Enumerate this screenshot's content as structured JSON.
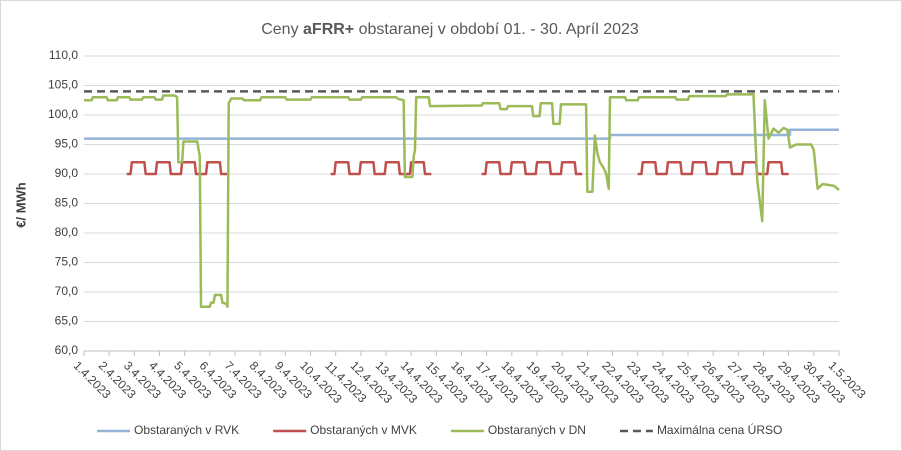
{
  "chart_data": {
    "type": "line",
    "title": [
      "Ceny ",
      "aFRR+",
      " obstaranej v období 01. - 30. Apríl 2023"
    ],
    "y_label": "€/ MWh",
    "xlim": [
      0,
      30
    ],
    "xticks": [
      {
        "value": 0,
        "label": "1.4.2023"
      },
      {
        "value": 1,
        "label": "2.4.2023"
      },
      {
        "value": 2,
        "label": "3.4.2023"
      },
      {
        "value": 3,
        "label": "4.4.2023"
      },
      {
        "value": 4,
        "label": "5.4.2023"
      },
      {
        "value": 5,
        "label": "6.4.2023"
      },
      {
        "value": 6,
        "label": "7.4.2023"
      },
      {
        "value": 7,
        "label": "8.4.2023"
      },
      {
        "value": 8,
        "label": "9.4.2023"
      },
      {
        "value": 9,
        "label": "10.4.2023"
      },
      {
        "value": 10,
        "label": "11.4.2023"
      },
      {
        "value": 11,
        "label": "12.4.2023"
      },
      {
        "value": 12,
        "label": "13.4.2023"
      },
      {
        "value": 13,
        "label": "14.4.2023"
      },
      {
        "value": 14,
        "label": "15.4.2023"
      },
      {
        "value": 15,
        "label": "16.4.2023"
      },
      {
        "value": 16,
        "label": "17.4.2023"
      },
      {
        "value": 17,
        "label": "18.4.2023"
      },
      {
        "value": 18,
        "label": "19.4.2023"
      },
      {
        "value": 19,
        "label": "20.4.2023"
      },
      {
        "value": 20,
        "label": "21.4.2023"
      },
      {
        "value": 21,
        "label": "22.4.2023"
      },
      {
        "value": 22,
        "label": "23.4.2023"
      },
      {
        "value": 23,
        "label": "24.4.2023"
      },
      {
        "value": 24,
        "label": "25.4.2023"
      },
      {
        "value": 25,
        "label": "26.4.2023"
      },
      {
        "value": 26,
        "label": "27.4.2023"
      },
      {
        "value": 27,
        "label": "28.4.2023"
      },
      {
        "value": 28,
        "label": "29.4.2023"
      },
      {
        "value": 29,
        "label": "30.4.2023"
      },
      {
        "value": 30,
        "label": "1.5.2023"
      }
    ],
    "ylim": [
      60,
      110
    ],
    "yticks": [
      {
        "value": 60,
        "label": "60,0"
      },
      {
        "value": 65,
        "label": "65,0"
      },
      {
        "value": 70,
        "label": "70,0"
      },
      {
        "value": 75,
        "label": "75,0"
      },
      {
        "value": 80,
        "label": "80,0"
      },
      {
        "value": 85,
        "label": "85,0"
      },
      {
        "value": 90,
        "label": "90,0"
      },
      {
        "value": 95,
        "label": "95,0"
      },
      {
        "value": 100,
        "label": "100,0"
      },
      {
        "value": 105,
        "label": "105,0"
      },
      {
        "value": 110,
        "label": "110,0"
      }
    ],
    "grid": true,
    "legend": "bottom",
    "series": [
      {
        "name": "Obstaraných v RVK",
        "color": "#95b3d7",
        "x": [
          0,
          20.9,
          20.9,
          28.05,
          28.05,
          30
        ],
        "values": [
          96,
          96,
          96.6,
          96.6,
          97.5,
          97.5
        ]
      },
      {
        "name": "Obstaraných v MVK",
        "color": "#c0504d",
        "x": [
          1.7,
          1.85,
          1.9,
          2.4,
          2.45,
          2.85,
          2.9,
          3.4,
          3.45,
          3.85,
          3.9,
          4.4,
          4.45,
          4.85,
          4.9,
          5.4,
          5.45,
          5.7,
          7.75,
          9.8,
          9.95,
          10,
          10.5,
          10.55,
          10.95,
          11,
          11.5,
          11.55,
          11.95,
          12,
          12.5,
          12.55,
          12.95,
          13,
          13.5,
          13.55,
          13.8,
          14.8,
          15.8,
          15.95,
          16,
          16.5,
          16.55,
          16.95,
          17,
          17.5,
          17.55,
          17.95,
          18,
          18.5,
          18.55,
          18.95,
          19,
          19.5,
          19.55,
          19.8,
          20.9,
          22,
          22.15,
          22.2,
          22.7,
          22.75,
          23.15,
          23.2,
          23.7,
          23.75,
          24.15,
          24.2,
          24.7,
          24.75,
          25.15,
          25.2,
          25.7,
          25.75,
          26.15,
          26.2,
          26.7,
          26.75,
          27.15,
          27.2,
          27.7,
          27.75,
          28
        ],
        "values": [
          90,
          90,
          92,
          92,
          90,
          90,
          92,
          92,
          90,
          90,
          92,
          92,
          90,
          90,
          92,
          92,
          90,
          90,
          null,
          90,
          90,
          92,
          92,
          90,
          90,
          92,
          92,
          90,
          90,
          92,
          92,
          90,
          90,
          92,
          92,
          90,
          90,
          null,
          90,
          90,
          92,
          92,
          90,
          90,
          92,
          92,
          90,
          90,
          92,
          92,
          90,
          90,
          92,
          92,
          90,
          90,
          null,
          90,
          90,
          92,
          92,
          90,
          90,
          92,
          92,
          90,
          90,
          92,
          92,
          90,
          90,
          92,
          92,
          90,
          90,
          92,
          92,
          90,
          90,
          92,
          92,
          90,
          90
        ]
      },
      {
        "name": "Obstaraných v DN",
        "color": "#9bbb59",
        "x": [
          0,
          0.3,
          0.35,
          0.9,
          0.95,
          1.3,
          1.35,
          1.8,
          1.85,
          2.3,
          2.35,
          2.8,
          2.85,
          3.1,
          3.15,
          3.6,
          3.7,
          3.75,
          3.9,
          3.95,
          4.5,
          4.6,
          4.65,
          5.0,
          5.05,
          5.15,
          5.2,
          5.45,
          5.5,
          5.65,
          5.7,
          5.75,
          5.85,
          6.3,
          6.35,
          7.0,
          7.05,
          8.0,
          8.05,
          9.0,
          9.05,
          10.5,
          10.55,
          11.0,
          11.05,
          12.4,
          12.5,
          12.7,
          12.75,
          13.05,
          13.1,
          13.15,
          13.2,
          13.7,
          13.75,
          15.8,
          15.85,
          16.5,
          16.55,
          16.8,
          16.85,
          17.8,
          17.85,
          18.1,
          18.15,
          18.6,
          18.65,
          18.9,
          18.95,
          19.95,
          20.0,
          20.2,
          20.3,
          20.4,
          20.5,
          20.65,
          20.75,
          20.85,
          20.9,
          21.5,
          21.55,
          22.0,
          22.05,
          23.5,
          23.55,
          24.0,
          24.05,
          25.5,
          25.55,
          26.5,
          26.6,
          26.75,
          26.95,
          27.05,
          27.2,
          27.4,
          27.6,
          27.8,
          27.95,
          28.05,
          28.3,
          28.9,
          29.0,
          29.15,
          29.35,
          29.8,
          30
        ],
        "values": [
          102.5,
          102.5,
          103,
          103,
          102.5,
          102.5,
          103,
          103,
          102.6,
          102.6,
          103,
          103,
          102.6,
          102.6,
          103.3,
          103.3,
          103,
          92,
          92,
          95.5,
          95.5,
          93,
          67.5,
          67.5,
          68.2,
          68.2,
          69.5,
          69.5,
          68.2,
          68,
          67.5,
          102,
          102.8,
          102.8,
          102.5,
          102.5,
          103,
          103,
          102.6,
          102.6,
          103,
          103,
          102.6,
          102.6,
          103,
          103,
          102.7,
          102.5,
          89.5,
          89.5,
          93,
          94,
          103,
          103,
          101.5,
          101.6,
          102,
          102,
          101,
          101,
          101.5,
          101.5,
          99.8,
          99.8,
          102,
          102,
          98.5,
          98.5,
          101.8,
          101.8,
          87,
          87,
          96.5,
          93.5,
          92,
          91,
          90,
          87.5,
          103,
          103,
          102.5,
          102.5,
          103,
          103,
          102.6,
          102.6,
          103.2,
          103.2,
          103.5,
          103.5,
          103.6,
          89,
          82,
          102.5,
          96,
          97.7,
          97,
          97.8,
          97.5,
          94.5,
          95,
          95,
          94,
          87.5,
          88.3,
          88,
          87.3
        ]
      },
      {
        "name": "Maximálna cena ÚRSO",
        "color": "#595959",
        "dashed": true,
        "x": [
          0,
          30
        ],
        "values": [
          104,
          104
        ]
      }
    ]
  }
}
